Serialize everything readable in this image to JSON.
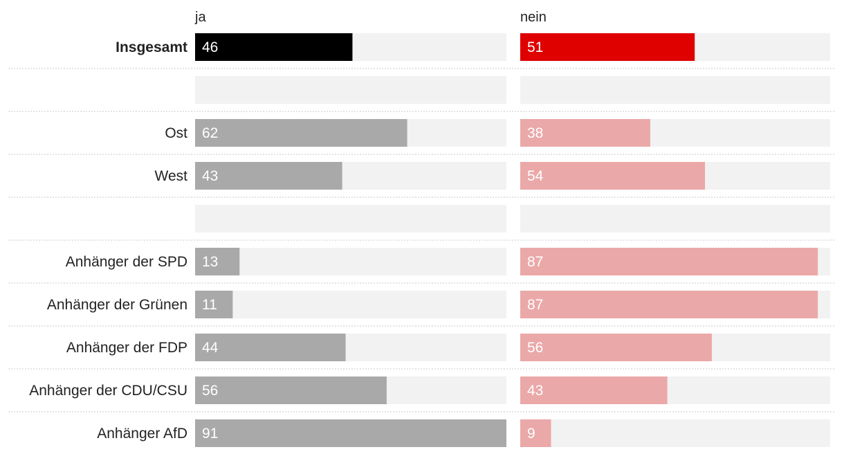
{
  "chart_data": {
    "type": "bar",
    "layout": "split-horizontal-bars",
    "value_scale_max": 91,
    "columns": [
      {
        "key": "ja",
        "label": "ja"
      },
      {
        "key": "nein",
        "label": "nein"
      }
    ],
    "rows": [
      {
        "label": "Insgesamt",
        "ja": 46,
        "nein": 51,
        "emphasis": true
      },
      {
        "label": "",
        "ja": null,
        "nein": null,
        "spacer": true
      },
      {
        "label": "Ost",
        "ja": 62,
        "nein": 38
      },
      {
        "label": "West",
        "ja": 43,
        "nein": 54
      },
      {
        "label": "",
        "ja": null,
        "nein": null,
        "spacer": true
      },
      {
        "label": "Anhänger der SPD",
        "ja": 13,
        "nein": 87
      },
      {
        "label": "Anhänger der Grünen",
        "ja": 11,
        "nein": 87
      },
      {
        "label": "Anhänger der FDP",
        "ja": 44,
        "nein": 56
      },
      {
        "label": "Anhänger der CDU/CSU",
        "ja": 56,
        "nein": 43
      },
      {
        "label": "Anhänger AfD",
        "ja": 91,
        "nein": 9
      }
    ],
    "colors": {
      "ja_emphasis": "#000000",
      "nein_emphasis": "#df0000",
      "ja": "#a9a9a9",
      "nein": "#eba8a8",
      "track": "#f2f2f2",
      "label": "#222222",
      "separator": "#c8c8c8"
    }
  }
}
